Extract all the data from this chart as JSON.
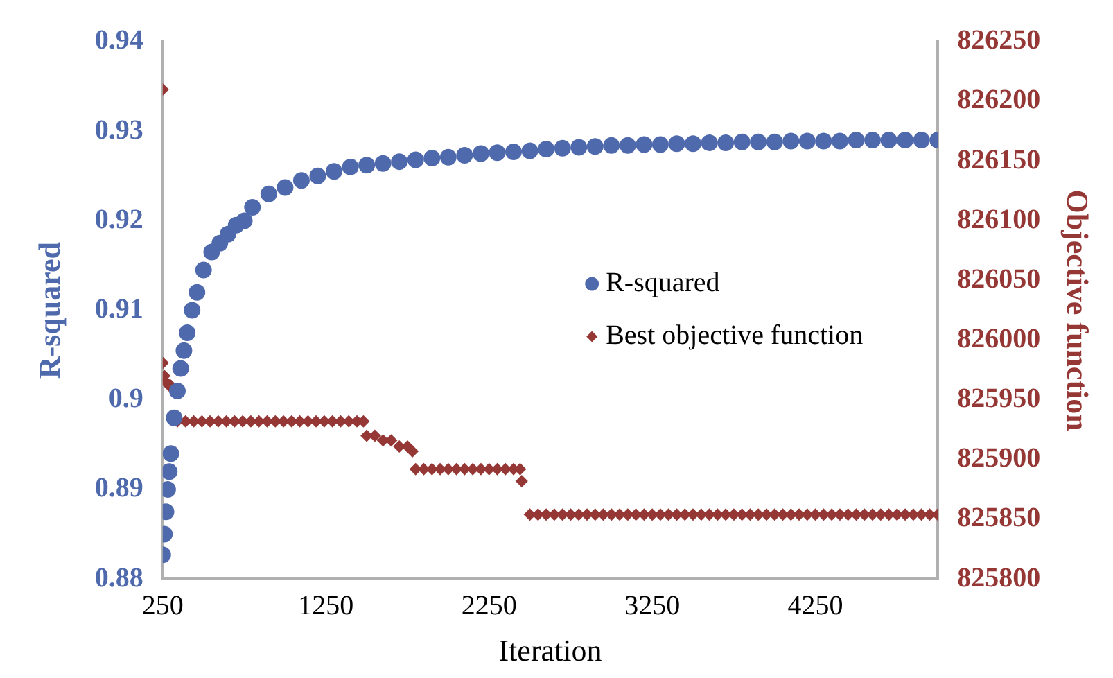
{
  "chart_data": {
    "type": "scatter",
    "xlabel": "Iteration",
    "ylabel": "R-squared",
    "y2label": "Objective function",
    "xlim": [
      250,
      5000
    ],
    "xticks": [
      250,
      1250,
      2250,
      3250,
      4250
    ],
    "ylim": [
      0.88,
      0.94
    ],
    "yticks": [
      0.88,
      0.89,
      0.9,
      0.91,
      0.92,
      0.93,
      0.94
    ],
    "y2lim": [
      825800,
      826250
    ],
    "y2ticks": [
      825800,
      825850,
      825900,
      825950,
      826000,
      826050,
      826100,
      826150,
      826200,
      826250
    ],
    "grid": false,
    "legend": "right",
    "series": [
      {
        "name": "R-squared",
        "color": "#4f69ad",
        "marker": "circle",
        "x": [
          250,
          260,
          270,
          280,
          290,
          300,
          320,
          340,
          360,
          380,
          400,
          430,
          460,
          500,
          550,
          600,
          650,
          700,
          750,
          800,
          900,
          1000,
          1100,
          1200,
          1300,
          1400,
          1500,
          1600,
          1700,
          1800,
          1900,
          2000,
          2100,
          2200,
          2300,
          2400,
          2500,
          2600,
          2700,
          2800,
          2900,
          3000,
          3100,
          3200,
          3300,
          3400,
          3500,
          3600,
          3700,
          3800,
          3900,
          4000,
          4100,
          4200,
          4300,
          4400,
          4500,
          4600,
          4700,
          4800,
          4900,
          5000
        ],
        "values": [
          0.8827,
          0.885,
          0.8875,
          0.89,
          0.892,
          0.894,
          0.898,
          0.901,
          0.9035,
          0.9055,
          0.9075,
          0.91,
          0.912,
          0.9145,
          0.9165,
          0.9175,
          0.9185,
          0.9195,
          0.92,
          0.9215,
          0.923,
          0.9237,
          0.9245,
          0.925,
          0.9255,
          0.926,
          0.9262,
          0.9264,
          0.9266,
          0.9268,
          0.927,
          0.9271,
          0.9273,
          0.9275,
          0.9276,
          0.9277,
          0.9278,
          0.928,
          0.9281,
          0.9282,
          0.9283,
          0.9284,
          0.9284,
          0.9285,
          0.9285,
          0.9286,
          0.9286,
          0.9287,
          0.9287,
          0.9288,
          0.9288,
          0.9288,
          0.9289,
          0.9289,
          0.9289,
          0.9289,
          0.929,
          0.929,
          0.929,
          0.929,
          0.929,
          0.929
        ]
      },
      {
        "name": "Best objective function",
        "color": "#953735",
        "marker": "diamond",
        "axis": "y2",
        "x": [
          250,
          250,
          260,
          270,
          290,
          300,
          340,
          390,
          440,
          490,
          540,
          590,
          640,
          690,
          740,
          790,
          840,
          890,
          940,
          990,
          1040,
          1090,
          1140,
          1190,
          1240,
          1290,
          1340,
          1390,
          1440,
          1480,
          1500,
          1550,
          1600,
          1650,
          1700,
          1750,
          1780,
          1800,
          1850,
          1900,
          1950,
          2000,
          2050,
          2100,
          2150,
          2200,
          2250,
          2300,
          2350,
          2400,
          2440,
          2450,
          2500,
          2550,
          2600,
          2650,
          2700,
          2750,
          2800,
          2850,
          2900,
          2950,
          3000,
          3050,
          3100,
          3150,
          3200,
          3250,
          3300,
          3350,
          3400,
          3450,
          3500,
          3550,
          3600,
          3650,
          3700,
          3750,
          3800,
          3850,
          3900,
          3950,
          4000,
          4050,
          4100,
          4150,
          4200,
          4250,
          4300,
          4350,
          4400,
          4450,
          4500,
          4550,
          4600,
          4650,
          4700,
          4750,
          4800,
          4850,
          4900,
          4950,
          5000
        ],
        "values": [
          826210,
          825981,
          825970,
          825965,
          825962,
          825962,
          825932,
          825932,
          825932,
          825932,
          825932,
          825932,
          825932,
          825932,
          825932,
          825932,
          825932,
          825932,
          825932,
          825932,
          825932,
          825932,
          825932,
          825932,
          825932,
          825932,
          825932,
          825932,
          825932,
          825932,
          825920,
          825920,
          825916,
          825916,
          825911,
          825911,
          825907,
          825892,
          825892,
          825892,
          825892,
          825892,
          825892,
          825892,
          825892,
          825892,
          825892,
          825892,
          825892,
          825892,
          825892,
          825882,
          825854,
          825854,
          825854,
          825854,
          825854,
          825854,
          825854,
          825854,
          825854,
          825854,
          825854,
          825854,
          825854,
          825854,
          825854,
          825854,
          825854,
          825854,
          825854,
          825854,
          825854,
          825854,
          825854,
          825854,
          825854,
          825854,
          825854,
          825854,
          825854,
          825854,
          825854,
          825854,
          825854,
          825854,
          825854,
          825854,
          825854,
          825854,
          825854,
          825854,
          825854,
          825854,
          825854,
          825854,
          825854,
          825854,
          825854,
          825854,
          825854,
          825854,
          825854
        ]
      }
    ]
  }
}
